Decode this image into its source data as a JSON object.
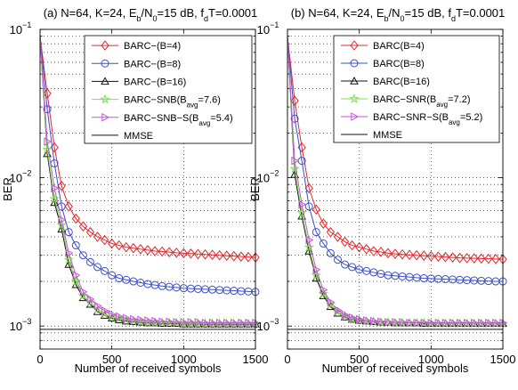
{
  "chart_data": [
    {
      "type": "line",
      "title_parts": [
        "(a) N=64, K=24, E",
        "b",
        "/N",
        "0",
        "=15 dB, f",
        "d",
        "T=0.0001"
      ],
      "xlabel": "Number of received symbols",
      "ylabel": "BER",
      "xlim": [
        0,
        1500
      ],
      "ylim": [
        0.0007,
        0.1
      ],
      "yscale": "log",
      "xticks": [
        "0",
        "500",
        "1000",
        "1500"
      ],
      "yticks": [
        {
          "value": 0.1,
          "base": "10",
          "exp": "−1"
        },
        {
          "value": 0.01,
          "base": "10",
          "exp": "−2"
        },
        {
          "value": 0.001,
          "base": "10",
          "exp": "−3"
        }
      ],
      "grid": true,
      "legend_position": "top-right",
      "x": [
        0,
        50,
        100,
        150,
        200,
        250,
        300,
        350,
        400,
        450,
        500,
        550,
        600,
        650,
        700,
        750,
        800,
        850,
        900,
        950,
        1000,
        1050,
        1100,
        1150,
        1200,
        1250,
        1300,
        1350,
        1400,
        1450,
        1500
      ],
      "series": [
        {
          "name_parts": [
            "BARC−(B=4)"
          ],
          "color": "#e8262a",
          "marker": "diamond",
          "values": [
            0.09,
            0.037,
            0.016,
            0.0088,
            0.0064,
            0.0053,
            0.0047,
            0.0043,
            0.004,
            0.0038,
            0.0036,
            0.0035,
            0.0034,
            0.00335,
            0.0033,
            0.00325,
            0.0032,
            0.00318,
            0.00315,
            0.00312,
            0.0031,
            0.00308,
            0.00306,
            0.00304,
            0.00302,
            0.003,
            0.00298,
            0.00296,
            0.00294,
            0.00292,
            0.0029
          ]
        },
        {
          "name_parts": [
            "BARC−(B=8)"
          ],
          "color": "#3a4fcf",
          "marker": "circle",
          "values": [
            0.09,
            0.029,
            0.0125,
            0.0064,
            0.0043,
            0.0035,
            0.003,
            0.0027,
            0.0025,
            0.00235,
            0.0022,
            0.0021,
            0.00205,
            0.002,
            0.00196,
            0.00192,
            0.00189,
            0.00186,
            0.00184,
            0.00182,
            0.0018,
            0.00179,
            0.00178,
            0.00177,
            0.00176,
            0.00175,
            0.00174,
            0.00173,
            0.00172,
            0.00171,
            0.0017
          ]
        },
        {
          "name_parts": [
            "BARC−(B=16)"
          ],
          "color": "#111111",
          "marker": "triangle",
          "values": [
            0.09,
            0.0145,
            0.0068,
            0.0045,
            0.0026,
            0.0019,
            0.00155,
            0.0014,
            0.00125,
            0.00118,
            0.00113,
            0.0011,
            0.00108,
            0.00107,
            0.00106,
            0.00105,
            0.00105,
            0.00104,
            0.00104,
            0.00104,
            0.00103,
            0.00103,
            0.00103,
            0.00103,
            0.00103,
            0.00103,
            0.00103,
            0.00103,
            0.00103,
            0.00103,
            0.00103
          ]
        },
        {
          "name_parts": [
            "BARC−SNB(B",
            "avg",
            "=7.6)"
          ],
          "color": "#7ee04a",
          "marker": "star",
          "values": [
            0.09,
            0.0155,
            0.0072,
            0.0048,
            0.0028,
            0.002,
            0.0016,
            0.00145,
            0.0013,
            0.00121,
            0.00115,
            0.00112,
            0.0011,
            0.00108,
            0.00107,
            0.00106,
            0.00106,
            0.00105,
            0.00105,
            0.00105,
            0.00104,
            0.00104,
            0.00104,
            0.00104,
            0.00104,
            0.00104,
            0.00104,
            0.00104,
            0.00104,
            0.00104,
            0.00104
          ]
        },
        {
          "name_parts": [
            "BARC−SNB−S(B",
            "avg",
            "=5.4)"
          ],
          "color": "#c455d8",
          "marker": "triangle-right",
          "values": [
            0.09,
            0.0175,
            0.0085,
            0.0052,
            0.0031,
            0.0022,
            0.0017,
            0.00152,
            0.00137,
            0.00127,
            0.0012,
            0.00116,
            0.00113,
            0.00111,
            0.0011,
            0.00109,
            0.00108,
            0.00107,
            0.00107,
            0.00106,
            0.00106,
            0.00106,
            0.00106,
            0.00105,
            0.00105,
            0.00105,
            0.00105,
            0.00105,
            0.00105,
            0.00105,
            0.00105
          ]
        },
        {
          "name_parts": [
            "MMSE"
          ],
          "color": "#111111",
          "marker": "none",
          "values": [
            0.00095,
            0.00095,
            0.00095,
            0.00095,
            0.00095,
            0.00095,
            0.00095,
            0.00095,
            0.00095,
            0.00095,
            0.00095,
            0.00095,
            0.00095,
            0.00095,
            0.00095,
            0.00095,
            0.00095,
            0.00095,
            0.00095,
            0.00095,
            0.00095,
            0.00095,
            0.00095,
            0.00095,
            0.00095,
            0.00095,
            0.00095,
            0.00095,
            0.00095,
            0.00095,
            0.00095
          ]
        }
      ]
    },
    {
      "type": "line",
      "title_parts": [
        "(b) N=64, K=24, E",
        "b",
        "/N",
        "0",
        "=15 dB, f",
        "d",
        "T=0.0001"
      ],
      "xlabel": "Number of received symbols",
      "ylabel": "BER",
      "xlim": [
        0,
        1500
      ],
      "ylim": [
        0.0007,
        0.1
      ],
      "yscale": "log",
      "xticks": [
        "0",
        "500",
        "1000",
        "1500"
      ],
      "yticks": [
        {
          "value": 0.1,
          "base": "10",
          "exp": "−1"
        },
        {
          "value": 0.01,
          "base": "10",
          "exp": "−2"
        },
        {
          "value": 0.001,
          "base": "10",
          "exp": "−3"
        }
      ],
      "grid": true,
      "legend_position": "top-right",
      "x": [
        0,
        50,
        100,
        150,
        200,
        250,
        300,
        350,
        400,
        450,
        500,
        550,
        600,
        650,
        700,
        750,
        800,
        850,
        900,
        950,
        1000,
        1050,
        1100,
        1150,
        1200,
        1250,
        1300,
        1350,
        1400,
        1450,
        1500
      ],
      "series": [
        {
          "name_parts": [
            "BARC(B=4)"
          ],
          "color": "#e8262a",
          "marker": "diamond",
          "values": [
            0.09,
            0.033,
            0.016,
            0.0085,
            0.0061,
            0.0049,
            0.0043,
            0.004,
            0.0037,
            0.0035,
            0.0034,
            0.0033,
            0.0032,
            0.00316,
            0.0031,
            0.00307,
            0.00304,
            0.00302,
            0.003,
            0.00298,
            0.00296,
            0.00294,
            0.00292,
            0.0029,
            0.00288,
            0.00287,
            0.00286,
            0.00285,
            0.00284,
            0.00283,
            0.00282
          ]
        },
        {
          "name_parts": [
            "BARC(B=8)"
          ],
          "color": "#3a4fcf",
          "marker": "circle",
          "values": [
            0.09,
            0.025,
            0.013,
            0.0064,
            0.0043,
            0.0036,
            0.0031,
            0.0028,
            0.0026,
            0.0025,
            0.0024,
            0.00235,
            0.0023,
            0.00225,
            0.0022,
            0.00218,
            0.00216,
            0.00214,
            0.00212,
            0.0021,
            0.00209,
            0.00208,
            0.00207,
            0.00206,
            0.00205,
            0.00204,
            0.00203,
            0.00202,
            0.00201,
            0.002,
            0.002
          ]
        },
        {
          "name_parts": [
            "BARC(B=16)"
          ],
          "color": "#111111",
          "marker": "triangle",
          "values": [
            0.09,
            0.0105,
            0.0055,
            0.0032,
            0.0021,
            0.0016,
            0.00135,
            0.00122,
            0.00115,
            0.00111,
            0.00109,
            0.00108,
            0.00107,
            0.00106,
            0.00106,
            0.00105,
            0.00105,
            0.00105,
            0.00105,
            0.00104,
            0.00104,
            0.00104,
            0.00104,
            0.00104,
            0.00104,
            0.00104,
            0.00104,
            0.00104,
            0.00104,
            0.00104,
            0.00104
          ]
        },
        {
          "name_parts": [
            "BARC−SNR(B",
            "avg",
            "=7.2)"
          ],
          "color": "#7ee04a",
          "marker": "star",
          "values": [
            0.09,
            0.0115,
            0.0058,
            0.0034,
            0.0022,
            0.00165,
            0.0014,
            0.00125,
            0.00117,
            0.00112,
            0.0011,
            0.00108,
            0.00107,
            0.00106,
            0.00106,
            0.00105,
            0.00105,
            0.00105,
            0.00105,
            0.00105,
            0.00104,
            0.00104,
            0.00104,
            0.00104,
            0.00104,
            0.00104,
            0.00104,
            0.00104,
            0.00104,
            0.00104,
            0.00104
          ]
        },
        {
          "name_parts": [
            "BARC−SNR−S(B",
            "avg",
            "=5.2)"
          ],
          "color": "#c455d8",
          "marker": "triangle-right",
          "values": [
            0.09,
            0.013,
            0.0066,
            0.0038,
            0.0024,
            0.00175,
            0.00145,
            0.00128,
            0.00119,
            0.00114,
            0.00111,
            0.00109,
            0.00108,
            0.00107,
            0.00106,
            0.00106,
            0.00106,
            0.00105,
            0.00105,
            0.00105,
            0.00105,
            0.00105,
            0.00105,
            0.00105,
            0.00105,
            0.00105,
            0.00105,
            0.00105,
            0.00105,
            0.00105,
            0.00105
          ]
        },
        {
          "name_parts": [
            "MMSE"
          ],
          "color": "#111111",
          "marker": "none",
          "values": [
            0.00095,
            0.00095,
            0.00095,
            0.00095,
            0.00095,
            0.00095,
            0.00095,
            0.00095,
            0.00095,
            0.00095,
            0.00095,
            0.00095,
            0.00095,
            0.00095,
            0.00095,
            0.00095,
            0.00095,
            0.00095,
            0.00095,
            0.00095,
            0.00095,
            0.00095,
            0.00095,
            0.00095,
            0.00095,
            0.00095,
            0.00095,
            0.00095,
            0.00095,
            0.00095,
            0.00095
          ]
        }
      ]
    }
  ]
}
